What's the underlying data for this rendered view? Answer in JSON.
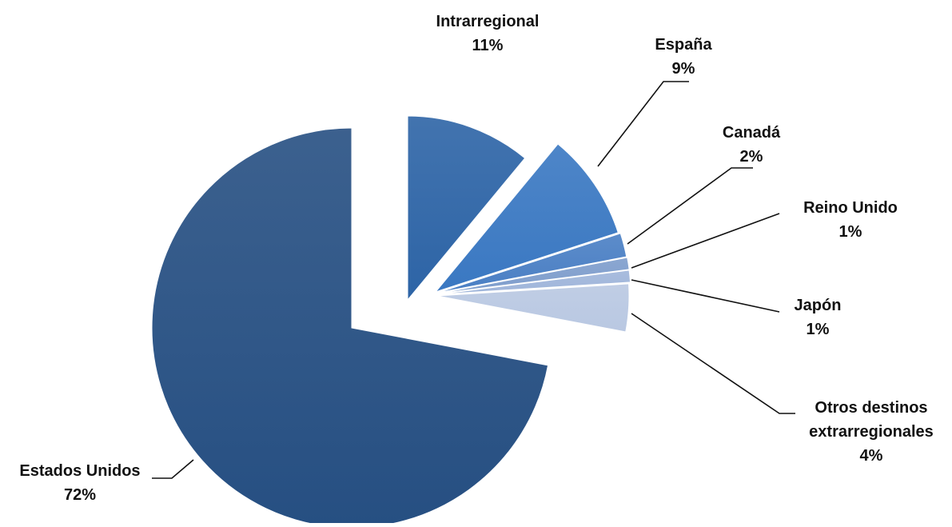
{
  "chart_data": {
    "type": "pie",
    "categories": [
      "Estados Unidos",
      "Intrarregional",
      "España",
      "Canadá",
      "Reino Unido",
      "Japón",
      "Otros destinos extrarregionales"
    ],
    "values": [
      72,
      11,
      9,
      2,
      1,
      1,
      4
    ],
    "value_labels": [
      "72%",
      "11%",
      "9%",
      "2%",
      "1%",
      "1%",
      "4%"
    ],
    "label_lines": [
      [
        "Estados Unidos",
        "72%"
      ],
      [
        "Intrarregional",
        "11%"
      ],
      [
        "España",
        "9%"
      ],
      [
        "Canadá",
        "2%"
      ],
      [
        "Reino Unido",
        "1%"
      ],
      [
        "Japón",
        "1%"
      ],
      [
        "Otros destinos",
        "extrarregionales",
        "4%"
      ]
    ],
    "exploded": true,
    "legend": "none",
    "title": "",
    "colors": [
      "#264f82",
      "#2d64a6",
      "#3a78c2",
      "#4a7fc4",
      "#7e9dcc",
      "#9fb5da",
      "#b9c8e2"
    ]
  }
}
